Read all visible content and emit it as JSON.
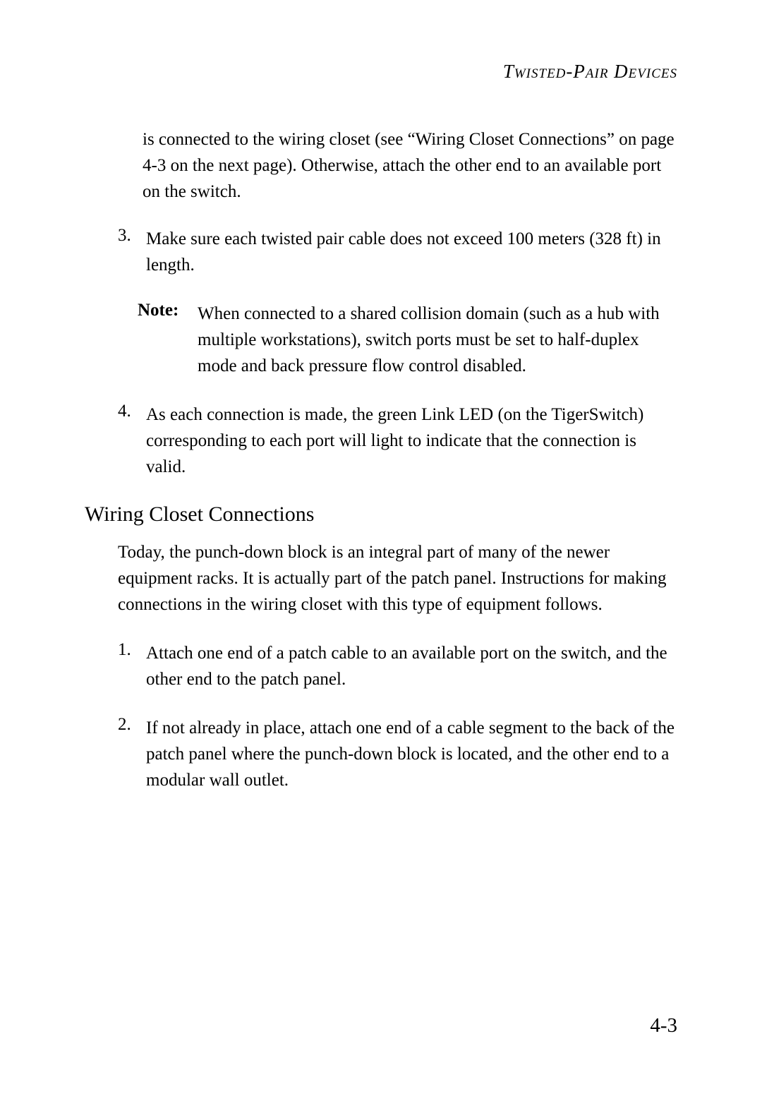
{
  "header": {
    "running_title": "Twisted-Pair Devices"
  },
  "continuation_para": "is connected to the wiring closet (see “Wiring Closet Connections” on page 4-3 on the next page). Otherwise, attach the other end to an available port on the switch.",
  "list_a": {
    "item_3": {
      "number": "3.",
      "text": "Make sure each twisted pair cable does not exceed 100 meters (328 ft) in length."
    },
    "note": {
      "label": "Note:",
      "text": "When connected to a shared collision domain (such as a hub with multiple workstations), switch ports must be set to half-duplex mode and back pressure flow control disabled."
    },
    "item_4": {
      "number": "4.",
      "text": "As each connection is made, the green Link LED (on the TigerSwitch) corresponding to each port will light to indicate that the connection is valid."
    }
  },
  "section": {
    "heading": "Wiring Closet Connections",
    "intro": "Today, the punch-down block is an integral part of many of the newer equipment racks. It is actually part of the patch panel. Instructions for making connections in the wiring closet with this type of equipment follows."
  },
  "list_b": {
    "item_1": {
      "number": "1.",
      "text": "Attach one end of a patch cable to an available port on the switch, and the other end to the patch panel."
    },
    "item_2": {
      "number": "2.",
      "text": "If not already in place, attach one end of a cable segment to the back of the patch panel where the punch-down block is located, and the other end to a modular wall outlet."
    }
  },
  "page_number": "4-3",
  "typography": {
    "body_fontsize": 25,
    "heading_fontsize": 30,
    "header_fontsize": 27,
    "page_number_fontsize": 29,
    "font_family": "Garamond, Georgia, serif",
    "line_height": 1.48
  },
  "colors": {
    "background": "#ffffff",
    "text": "#000000"
  }
}
